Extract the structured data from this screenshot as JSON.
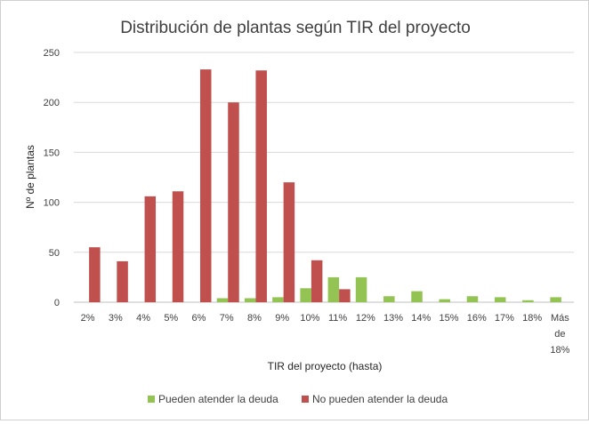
{
  "chart_data": {
    "type": "bar",
    "title": "Distribución de plantas según TIR del proyecto",
    "xlabel": "TIR del proyecto (hasta)",
    "ylabel": "Nº de plantas",
    "ylim": [
      0,
      250
    ],
    "yticks": [
      0,
      50,
      100,
      150,
      200,
      250
    ],
    "categories": [
      "2%",
      "3%",
      "4%",
      "5%",
      "6%",
      "7%",
      "8%",
      "9%",
      "10%",
      "11%",
      "12%",
      "13%",
      "14%",
      "15%",
      "16%",
      "17%",
      "18%",
      "Más de 18%"
    ],
    "category_lines": [
      [
        "2%"
      ],
      [
        "3%"
      ],
      [
        "4%"
      ],
      [
        "5%"
      ],
      [
        "6%"
      ],
      [
        "7%"
      ],
      [
        "8%"
      ],
      [
        "9%"
      ],
      [
        "10%"
      ],
      [
        "11%"
      ],
      [
        "12%"
      ],
      [
        "13%"
      ],
      [
        "14%"
      ],
      [
        "15%"
      ],
      [
        "16%"
      ],
      [
        "17%"
      ],
      [
        "18%"
      ],
      [
        "Más",
        "de",
        "18%"
      ]
    ],
    "grid": true,
    "legend_position": "bottom",
    "series": [
      {
        "name": "Pueden atender la deuda",
        "color": "#93c353",
        "values": [
          0,
          0,
          0,
          0,
          0,
          4,
          4,
          5,
          14,
          25,
          25,
          6,
          11,
          3,
          6,
          5,
          2,
          5
        ]
      },
      {
        "name": "No pueden atender la deuda",
        "color": "#c0504d",
        "values": [
          55,
          41,
          106,
          111,
          233,
          200,
          232,
          120,
          42,
          13,
          0,
          0,
          0,
          0,
          0,
          0,
          0,
          0
        ]
      }
    ]
  }
}
